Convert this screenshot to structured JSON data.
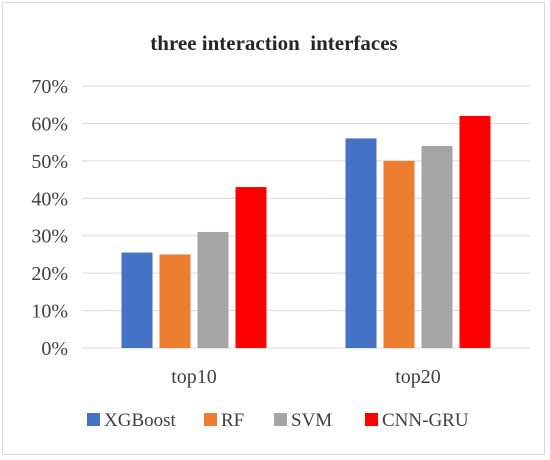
{
  "chart_data": {
    "type": "bar",
    "title": "three interaction  interfaces",
    "categories": [
      "top10",
      "top20"
    ],
    "series": [
      {
        "name": "XGBoost",
        "color": "#4472c4",
        "values": [
          25.5,
          56
        ]
      },
      {
        "name": "RF",
        "color": "#ed7d31",
        "values": [
          25,
          50
        ]
      },
      {
        "name": "SVM",
        "color": "#a5a5a5",
        "values": [
          31,
          54
        ]
      },
      {
        "name": "CNN-GRU",
        "color": "#ff0000",
        "values": [
          43,
          62
        ]
      }
    ],
    "ylim": [
      0,
      70
    ],
    "yticks": [
      0,
      10,
      20,
      30,
      40,
      50,
      60,
      70
    ],
    "ytick_labels": [
      "0%",
      "10%",
      "20%",
      "30%",
      "40%",
      "50%",
      "60%",
      "70%"
    ],
    "grid": true,
    "legend_position": "bottom"
  }
}
